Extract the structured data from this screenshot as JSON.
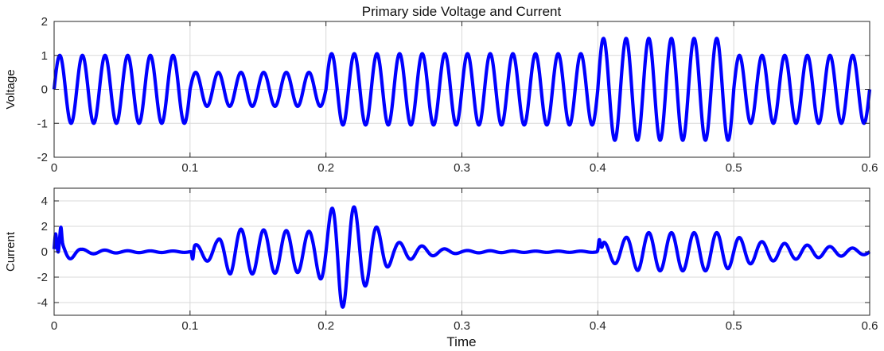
{
  "figure": {
    "title": "Primary side Voltage and Current"
  },
  "chart_data": [
    {
      "type": "line",
      "title": "Primary side Voltage and Current",
      "xlabel": "",
      "ylabel": "Voltage",
      "xlim": [
        0,
        0.6
      ],
      "ylim": [
        -2,
        2
      ],
      "xticks": [
        0,
        0.1,
        0.2,
        0.3,
        0.4,
        0.5,
        0.6
      ],
      "xtick_labels": [
        "0",
        "0.1",
        "0.2",
        "0.3",
        "0.4",
        "0.5",
        "0.6"
      ],
      "yticks": [
        -2,
        -1,
        0,
        1,
        2
      ],
      "ytick_labels": [
        "-2",
        "-1",
        "0",
        "1",
        "2"
      ],
      "grid": true,
      "line_color": "#0000ff",
      "series": [
        {
          "frequency_hz": 60,
          "segments": [
            {
              "t_start": 0.0,
              "t_end": 0.1,
              "amplitude": 1.0
            },
            {
              "t_start": 0.1,
              "t_end": 0.2,
              "amplitude": 0.5
            },
            {
              "t_start": 0.2,
              "t_end": 0.4,
              "amplitude": 1.05
            },
            {
              "t_start": 0.4,
              "t_end": 0.5,
              "amplitude": 1.5
            },
            {
              "t_start": 0.5,
              "t_end": 0.6,
              "amplitude": 1.0
            }
          ]
        }
      ]
    },
    {
      "type": "line",
      "title": "",
      "xlabel": "Time",
      "ylabel": "Current",
      "xlim": [
        0,
        0.6
      ],
      "ylim": [
        -5,
        5
      ],
      "xticks": [
        0,
        0.1,
        0.2,
        0.3,
        0.4,
        0.5,
        0.6
      ],
      "xtick_labels": [
        "0",
        "0.1",
        "0.2",
        "0.3",
        "0.4",
        "0.5",
        "0.6"
      ],
      "yticks": [
        -4,
        -2,
        0,
        2,
        4
      ],
      "ytick_labels": [
        "-4",
        "-2",
        "0",
        "2",
        "4"
      ],
      "grid": true,
      "line_color": "#0000ff",
      "series": [
        {
          "frequency_hz": 60,
          "envelope": [
            {
              "t": 0.0,
              "amplitude": 1.1
            },
            {
              "t": 0.02,
              "amplitude": 0.2
            },
            {
              "t": 0.05,
              "amplitude": 0.08
            },
            {
              "t": 0.1,
              "amplitude": 0.05
            },
            {
              "t": 0.102,
              "amplitude": 0.5
            },
            {
              "t": 0.12,
              "amplitude": 0.9
            },
            {
              "t": 0.13,
              "amplitude": 1.8
            },
            {
              "t": 0.19,
              "amplitude": 1.6
            },
            {
              "t": 0.2,
              "amplitude": 2.5
            },
            {
              "t": 0.21,
              "amplitude": 4.6
            },
            {
              "t": 0.22,
              "amplitude": 3.6
            },
            {
              "t": 0.23,
              "amplitude": 2.6
            },
            {
              "t": 0.25,
              "amplitude": 0.8
            },
            {
              "t": 0.28,
              "amplitude": 0.3
            },
            {
              "t": 0.3,
              "amplitude": 0.1
            },
            {
              "t": 0.35,
              "amplitude": 0.05
            },
            {
              "t": 0.4,
              "amplitude": 0.05
            },
            {
              "t": 0.402,
              "amplitude": 0.7
            },
            {
              "t": 0.42,
              "amplitude": 1.1
            },
            {
              "t": 0.43,
              "amplitude": 1.5
            },
            {
              "t": 0.49,
              "amplitude": 1.5
            },
            {
              "t": 0.5,
              "amplitude": 1.2
            },
            {
              "t": 0.52,
              "amplitude": 0.8
            },
            {
              "t": 0.55,
              "amplitude": 0.55
            },
            {
              "t": 0.6,
              "amplitude": 0.2
            }
          ],
          "transient_spikes": [
            {
              "t": 0.001,
              "value": 1.0
            },
            {
              "t": 0.003,
              "value": -0.9
            },
            {
              "t": 0.005,
              "value": 1.1
            },
            {
              "t": 0.102,
              "value": -0.9
            },
            {
              "t": 0.401,
              "value": 0.8
            },
            {
              "t": 0.403,
              "value": -0.3
            }
          ]
        }
      ]
    }
  ]
}
